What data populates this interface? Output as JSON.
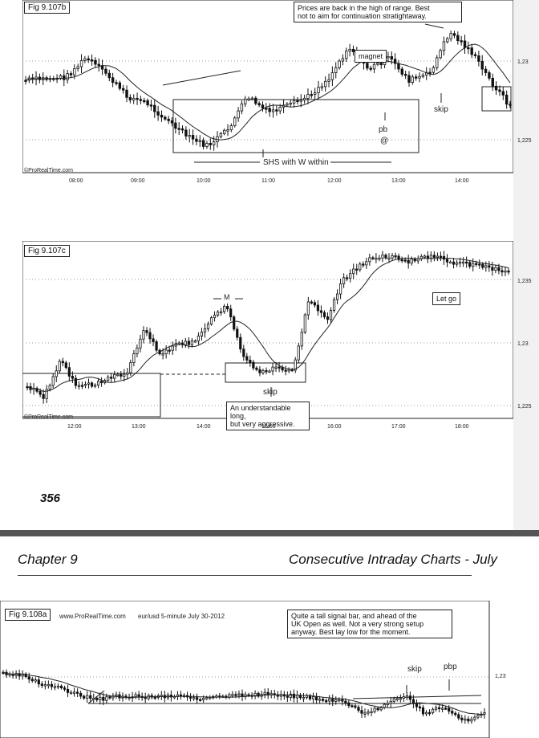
{
  "page_number": "356",
  "chapter": {
    "left": "Chapter 9",
    "right": "Consecutive Intraday Charts - July"
  },
  "fig_b": {
    "label": "Fig 9.107b",
    "note": [
      "Prices are back in the high of range. Best",
      "not to aim for continuation stratightaway."
    ],
    "magnet": "magnet",
    "pb": "pb",
    "at": "@",
    "skip": "skip",
    "shs": "SHS with W within",
    "watermark": "©ProRealTime.com",
    "x_ticks": [
      "08:00",
      "09:00",
      "10:00",
      "11:00",
      "12:00",
      "13:00",
      "14:00"
    ],
    "y_ticks": [
      "1,23",
      "1,225"
    ]
  },
  "fig_c": {
    "label": "Fig 9.107c",
    "m": "M",
    "let_go": "Let go",
    "skip": "skip",
    "note": [
      "An understandable long,",
      "but very aggressive."
    ],
    "watermark": "©ProRealTime.com",
    "x_ticks": [
      "12:00",
      "13:00",
      "14:00",
      "15:00",
      "16:00",
      "17:00",
      "18:00"
    ],
    "y_ticks": [
      "1,235",
      "1,23",
      "1,225"
    ]
  },
  "fig_a": {
    "label": "Fig 9.108a",
    "site": "www.ProRealTime.com",
    "symbol": "eur/usd 5-minute July 30-2012",
    "note": [
      "Quite a tall signal bar, and ahead of the",
      "UK Open as well. Not a very strong setup",
      "anyway. Best lay low for the moment."
    ],
    "skip": "skip",
    "pbp": "pbp",
    "y_ticks": [
      "1,23"
    ]
  }
}
